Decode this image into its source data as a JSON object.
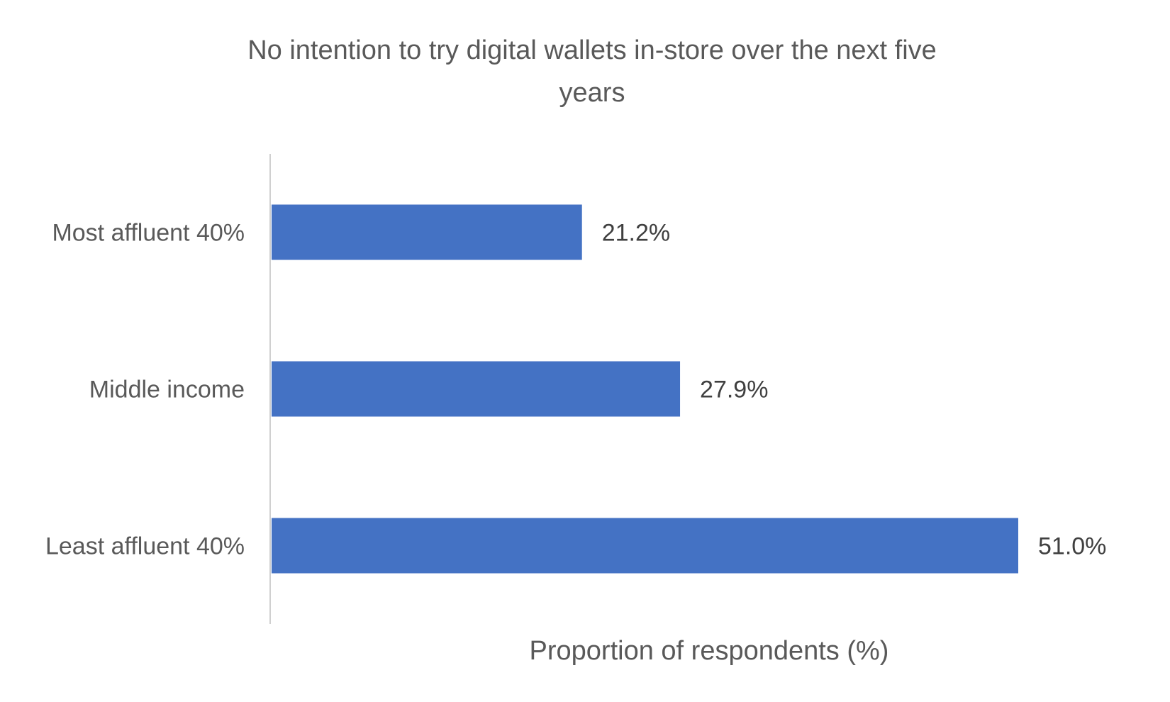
{
  "chart_data": {
    "type": "bar",
    "orientation": "horizontal",
    "title_lines": [
      "No intention to try digital wallets in-store over the next five",
      "years"
    ],
    "xlabel": "Proportion of respondents (%)",
    "ylabel": "",
    "categories": [
      "Most affluent 40%",
      "Middle income",
      "Least affluent 40%"
    ],
    "values": [
      21.2,
      27.9,
      51.0
    ],
    "data_labels": [
      "21.2%",
      "27.9%",
      "51.0%"
    ],
    "xlim": [
      0,
      51
    ],
    "grid": false,
    "legend": "none",
    "bar_color": "#4472C4"
  }
}
